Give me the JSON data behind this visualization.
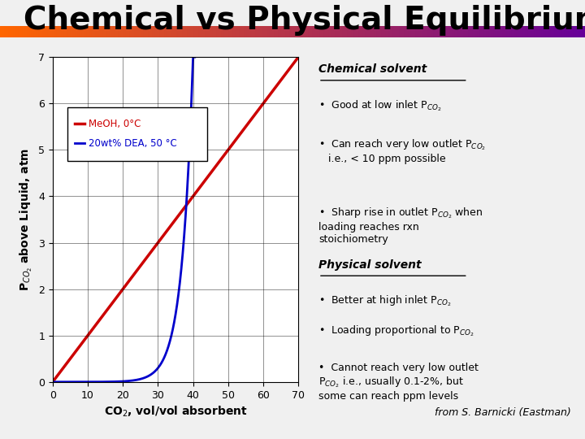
{
  "title": "Chemical vs Physical Equilibrium",
  "title_fontsize": 28,
  "title_color": "#000000",
  "background_color": "#f0f0f0",
  "plot_bg_color": "#ffffff",
  "xlabel": "CO$_2$, vol/vol absorbent",
  "ylabel": "P$_{CO_2}$ above Liquid, atm",
  "xlim": [
    0,
    70
  ],
  "ylim": [
    0,
    7
  ],
  "xticks": [
    0,
    10,
    20,
    30,
    40,
    50,
    60,
    70
  ],
  "yticks": [
    0,
    1,
    2,
    3,
    4,
    5,
    6,
    7
  ],
  "red_label": "MeOH, 0°C",
  "blue_label": "20wt% DEA, 50 °C",
  "red_color": "#cc0000",
  "blue_color": "#0000cc",
  "chem_title": "Chemical solvent",
  "chem_bullets": [
    "Good at low inlet P$_{CO_2}$",
    "Can reach very low outlet P$_{CO_2}$\n   i.e., < 10 ppm possible",
    "Sharp rise in outlet P$_{CO_2}$ when\nloading reaches rxn\nstoichiometry"
  ],
  "phys_title": "Physical solvent",
  "phys_bullets": [
    "Better at high inlet P$_{CO_2}$",
    "Loading proportional to P$_{CO_2}$",
    "Cannot reach very low outlet\nP$_{CO_2}$ i.e., usually 0.1-2%, but\nsome can reach ppm levels"
  ],
  "footer": "from S. Barnicki (Eastman)"
}
